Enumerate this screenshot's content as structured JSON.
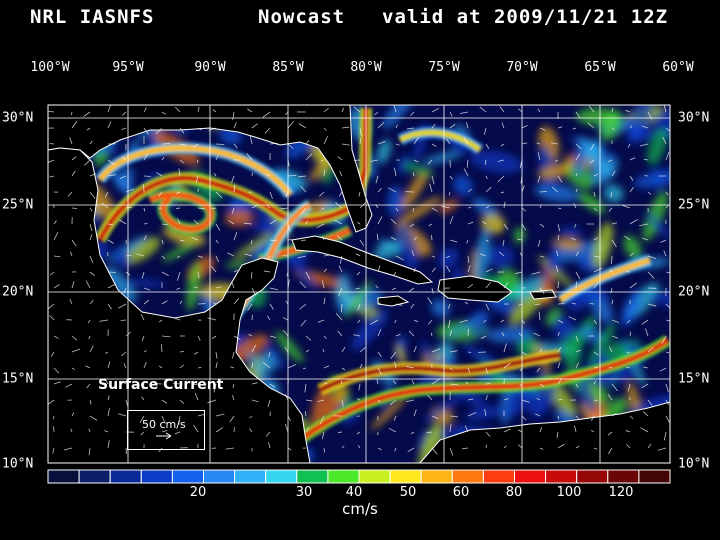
{
  "title": {
    "model": "NRL IASNFS",
    "product": "Nowcast",
    "valid": "valid at 2009/11/21 12Z"
  },
  "lon_labels": [
    "100°W",
    "95°W",
    "90°W",
    "85°W",
    "80°W",
    "75°W",
    "70°W",
    "65°W",
    "60°W"
  ],
  "lat_labels": [
    "30°N",
    "25°N",
    "20°N",
    "15°N",
    "10°N"
  ],
  "legend": {
    "title": "Surface Current",
    "reference_label": "50 cm/s",
    "reference_arrow": "arrow-right-icon"
  },
  "colorbar": {
    "unit": "cm/s",
    "tick_labels": [
      "20",
      "30",
      "40",
      "50",
      "60",
      "80",
      "100",
      "120"
    ],
    "colors": [
      "#06103a",
      "#0a1e6a",
      "#0a2a9a",
      "#0a3cc8",
      "#1660ee",
      "#2588f5",
      "#2fb2f8",
      "#35d6f0",
      "#10c050",
      "#4ce82a",
      "#c8f01e",
      "#ffe81e",
      "#ffb414",
      "#ff7a10",
      "#ff3e10",
      "#ee1010",
      "#c80a0a",
      "#960808",
      "#6a0606",
      "#420404"
    ]
  },
  "colors": {
    "background": "#000000",
    "ocean_base": "#050a4a",
    "land": "#000000",
    "coastline": "#ffffff",
    "grid": "#ffffff"
  }
}
